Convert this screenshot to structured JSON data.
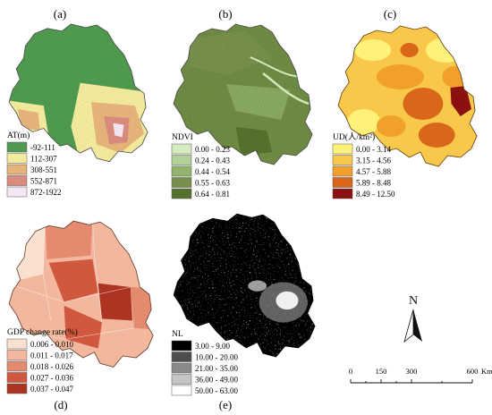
{
  "panels": [
    {
      "label": "(a)",
      "legend_title": "AT(m)",
      "classes": [
        {
          "label": "-92-111",
          "color": "#4f9a4f"
        },
        {
          "label": "112-307",
          "color": "#f2ea9c"
        },
        {
          "label": "308-551",
          "color": "#e6b47a"
        },
        {
          "label": "552-871",
          "color": "#d98c7e"
        },
        {
          "label": "872-1922",
          "color": "#f4e6f2"
        }
      ]
    },
    {
      "label": "(b)",
      "legend_title": "NDVI",
      "classes": [
        {
          "label": "0.00 - 0.23",
          "color": "#d4ecc0"
        },
        {
          "label": "0.24 - 0.43",
          "color": "#b3d196"
        },
        {
          "label": "0.44 - 0.54",
          "color": "#93b46c"
        },
        {
          "label": "0.55 - 0.63",
          "color": "#768f4c"
        },
        {
          "label": "0.64 - 0.81",
          "color": "#56702e"
        }
      ]
    },
    {
      "label": "(c)",
      "legend_title": "UD(人/km²)",
      "classes": [
        {
          "label": "0.00 - 3.14",
          "color": "#fff27a"
        },
        {
          "label": "3.15 - 4.56",
          "color": "#f9c84a"
        },
        {
          "label": "4.57 - 5.88",
          "color": "#f0a02b"
        },
        {
          "label": "5.89 - 8.48",
          "color": "#d9671a"
        },
        {
          "label": "8.49 - 12.50",
          "color": "#8b1010"
        }
      ]
    },
    {
      "label": "(d)",
      "legend_title": "GDP change rate(%)",
      "classes": [
        {
          "label": "0.006 - 0.010",
          "color": "#f9e0cf"
        },
        {
          "label": "0.011 - 0.017",
          "color": "#f2b79c"
        },
        {
          "label": "0.018 - 0.026",
          "color": "#e48a6e"
        },
        {
          "label": "0.027 - 0.036",
          "color": "#d0583f"
        },
        {
          "label": "0.037 - 0.047",
          "color": "#ad3322"
        }
      ]
    },
    {
      "label": "(e)",
      "legend_title": "NL",
      "classes": [
        {
          "label": "3.00 - 9.00",
          "color": "#000000"
        },
        {
          "label": "10.00 - 20.00",
          "color": "#4d4d4d"
        },
        {
          "label": "21.00 - 35.00",
          "color": "#8a8a8a"
        },
        {
          "label": "36.00 - 49.00",
          "color": "#c4c4c4"
        },
        {
          "label": "50.00 - 63.00",
          "color": "#ffffff"
        }
      ]
    }
  ],
  "north_arrow": {
    "label": "N"
  },
  "scale_bar": {
    "ticks": [
      "0",
      "150",
      "300",
      "600"
    ],
    "unit": "Km"
  }
}
